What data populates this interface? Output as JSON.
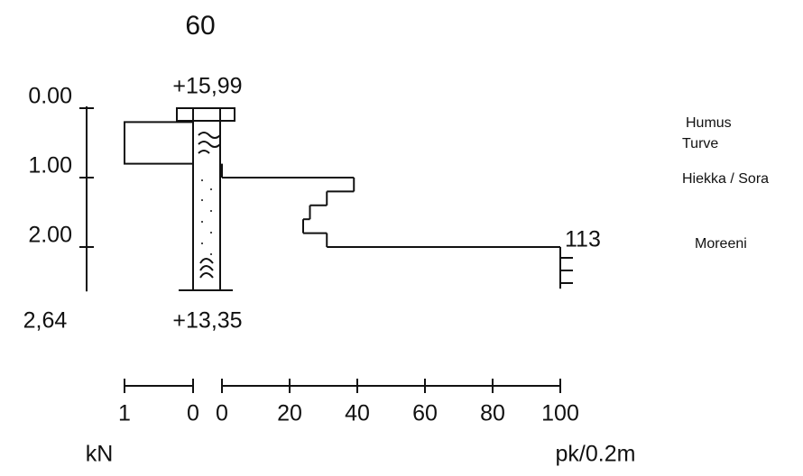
{
  "point_id": "60",
  "top_elevation": "+15,99",
  "bottom_elevation": "+13,35",
  "depth_axis": {
    "ylim": [
      0,
      2.64
    ],
    "ticks": [
      {
        "value": 0,
        "label": "0.00"
      },
      {
        "value": 1,
        "label": "1.00"
      },
      {
        "value": 2,
        "label": "2.00"
      }
    ],
    "end_depth": {
      "value": 2.64,
      "label": "2,64"
    }
  },
  "kn_axis": {
    "xlim": [
      0,
      1
    ],
    "ticks": [
      1,
      0
    ],
    "unit": "kN"
  },
  "pk_axis": {
    "xlim": [
      0,
      100
    ],
    "ticks": [
      0,
      20,
      40,
      60,
      80,
      100
    ],
    "unit": "pk/0.2m"
  },
  "kn_profile": {
    "depth_from": [
      0.2
    ],
    "depth_to": [
      0.8
    ],
    "values": [
      1
    ]
  },
  "pk_profile": {
    "depth_from": [
      0.8,
      1.0,
      1.2,
      1.4,
      1.6,
      1.8,
      2.0
    ],
    "depth_to": [
      1.0,
      1.2,
      1.4,
      1.6,
      1.8,
      2.0,
      2.6
    ],
    "values": [
      0,
      39,
      31,
      26,
      24,
      31,
      100
    ]
  },
  "max_annotation": "113",
  "layers": [
    "Humus",
    "Turve",
    "Hiekka / Sora",
    "Moreeni"
  ]
}
